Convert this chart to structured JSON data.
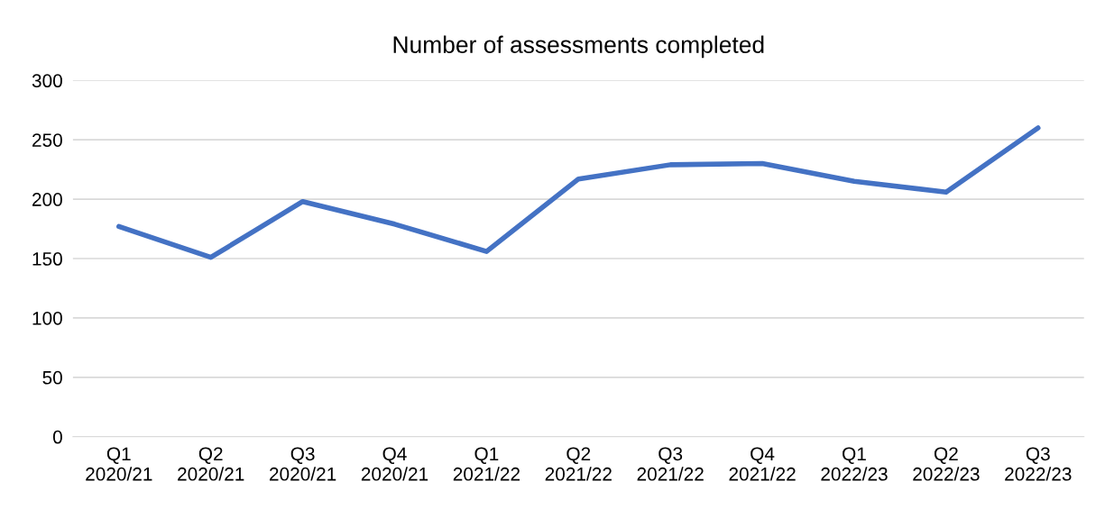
{
  "chart_data": {
    "type": "line",
    "title": "Number of assessments completed",
    "categories": [
      "Q1\n2020/21",
      "Q2\n2020/21",
      "Q3\n2020/21",
      "Q4\n2020/21",
      "Q1\n2021/22",
      "Q2\n2021/22",
      "Q3\n2021/22",
      "Q4\n2021/22",
      "Q1\n2022/23",
      "Q2\n2022/23",
      "Q3\n2022/23"
    ],
    "series": [
      {
        "color": "#4472c4",
        "values": [
          177,
          151,
          198,
          179,
          156,
          217,
          229,
          230,
          215,
          206,
          260
        ]
      }
    ],
    "ylim": [
      0,
      300
    ],
    "yticks": [
      0,
      50,
      100,
      150,
      200,
      250,
      300
    ],
    "grid": "y",
    "legend": false,
    "marker": "none",
    "line_style": "solid"
  }
}
